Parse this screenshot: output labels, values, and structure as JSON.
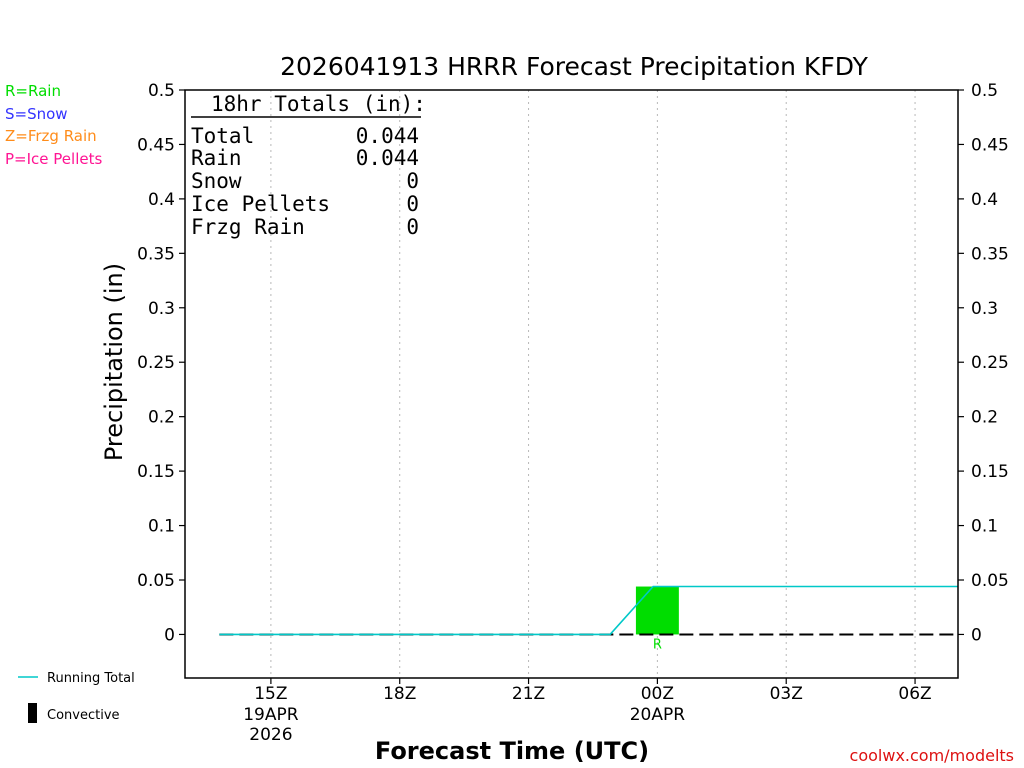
{
  "chart_data": {
    "type": "bar",
    "title": "2026041913 HRRR Forecast Precipitation KFDY",
    "xlabel": "Forecast Time (UTC)",
    "ylabel": "Precipitation (in)",
    "ylim": [
      -0.04,
      0.5
    ],
    "y_ticks": [
      0,
      0.05,
      0.1,
      0.15,
      0.2,
      0.25,
      0.3,
      0.35,
      0.4,
      0.45,
      0.5
    ],
    "y_tick_labels": [
      "0",
      "0.05",
      "0.1",
      "0.15",
      "0.2",
      "0.25",
      "0.3",
      "0.35",
      "0.4",
      "0.45",
      "0.5"
    ],
    "x_range_hours": [
      13.0,
      31.0
    ],
    "x_ticks": [
      {
        "hour": 15,
        "label": "15Z",
        "sub1": "19APR",
        "sub2": "2026"
      },
      {
        "hour": 18,
        "label": "18Z",
        "sub1": "",
        "sub2": ""
      },
      {
        "hour": 21,
        "label": "21Z",
        "sub1": "",
        "sub2": ""
      },
      {
        "hour": 24,
        "label": "00Z",
        "sub1": "20APR",
        "sub2": ""
      },
      {
        "hour": 27,
        "label": "03Z",
        "sub1": "",
        "sub2": ""
      },
      {
        "hour": 30,
        "label": "06Z",
        "sub1": "",
        "sub2": ""
      }
    ],
    "series": [
      {
        "name": "Rain",
        "color": "#00dd00",
        "bars": [
          {
            "hour": 24,
            "value": 0.044,
            "type_label": "R"
          }
        ]
      }
    ],
    "running_total": {
      "name": "Running Total",
      "color": "#00c8c8",
      "points": [
        [
          13.8,
          0
        ],
        [
          22.9,
          0
        ],
        [
          23.9,
          0.044
        ],
        [
          31.0,
          0.044
        ]
      ]
    },
    "dashed_baseline": {
      "from_hour": 13.8,
      "to_hour": 31.0,
      "value": 0
    }
  },
  "type_legend": [
    {
      "text": "R=Rain",
      "color": "#00dd00"
    },
    {
      "text": "S=Snow",
      "color": "#3333ff"
    },
    {
      "text": "Z=Frzg Rain",
      "color": "#ff8c1a"
    },
    {
      "text": "P=Ice Pellets",
      "color": "#ff1493"
    }
  ],
  "totals": {
    "header": "18hr Totals (in):",
    "rows": [
      {
        "label": "Total",
        "value": "0.044"
      },
      {
        "label": "Rain",
        "value": "0.044"
      },
      {
        "label": "Snow",
        "value": "0"
      },
      {
        "label": "Ice Pellets",
        "value": "0"
      },
      {
        "label": "Frzg Rain",
        "value": "0"
      }
    ]
  },
  "bottom_legend": {
    "running_total": "Running Total",
    "convective": "Convective"
  },
  "credit": "coolwx.com/modelts"
}
